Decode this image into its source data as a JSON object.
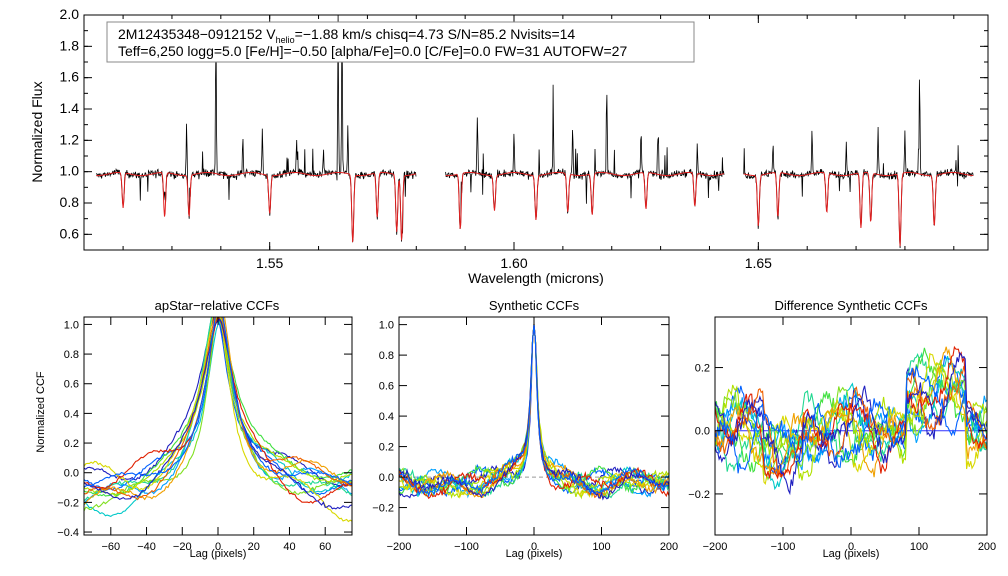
{
  "colors": {
    "observed": "#000000",
    "model": "#e02020",
    "ccf_palette": [
      "#2020c0",
      "#0060ff",
      "#00a0ff",
      "#00c8c8",
      "#20d890",
      "#40e040",
      "#80e020",
      "#b0e000",
      "#d8d800",
      "#f0a000",
      "#f06000",
      "#e02000"
    ],
    "zero_line_top": "#000000",
    "zero_line_diff": "#3030ff"
  },
  "chart_data": [
    {
      "type": "line",
      "id": "spectrum",
      "title": "",
      "xlabel": "Wavelength (microns)",
      "ylabel": "Normalized Flux",
      "xlim": [
        1.512,
        1.697
      ],
      "ylim": [
        0.5,
        2.0
      ],
      "x_ticks": [
        {
          "v": 1.55,
          "label": "1.55"
        },
        {
          "v": 1.6,
          "label": "1.60"
        },
        {
          "v": 1.65,
          "label": "1.65"
        }
      ],
      "y_ticks": [
        {
          "v": 0.6,
          "label": "0.6"
        },
        {
          "v": 0.8,
          "label": "0.8"
        },
        {
          "v": 1.0,
          "label": "1.0"
        },
        {
          "v": 1.2,
          "label": "1.2"
        },
        {
          "v": 1.4,
          "label": "1.4"
        },
        {
          "v": 1.6,
          "label": "1.6"
        },
        {
          "v": 1.8,
          "label": "1.8"
        },
        {
          "v": 2.0,
          "label": "2.0"
        }
      ],
      "chips": [
        [
          1.5145,
          1.58
        ],
        [
          1.586,
          1.643
        ],
        [
          1.647,
          1.694
        ]
      ],
      "emission_lines": [
        {
          "w": 1.5285,
          "h": 1.18
        },
        {
          "w": 1.533,
          "h": 1.35
        },
        {
          "w": 1.539,
          "h": 1.92
        },
        {
          "w": 1.5445,
          "h": 1.22
        },
        {
          "w": 1.5485,
          "h": 1.3
        },
        {
          "w": 1.5555,
          "h": 1.22
        },
        {
          "w": 1.561,
          "h": 1.15
        },
        {
          "w": 1.564,
          "h": 2.0
        },
        {
          "w": 1.5648,
          "h": 2.0
        },
        {
          "w": 1.566,
          "h": 1.3
        },
        {
          "w": 1.5925,
          "h": 1.38
        },
        {
          "w": 1.6,
          "h": 1.25
        },
        {
          "w": 1.608,
          "h": 1.55
        },
        {
          "w": 1.612,
          "h": 1.3
        },
        {
          "w": 1.619,
          "h": 1.5
        },
        {
          "w": 1.626,
          "h": 1.28
        },
        {
          "w": 1.6295,
          "h": 1.3
        },
        {
          "w": 1.6375,
          "h": 1.2
        },
        {
          "w": 1.661,
          "h": 1.27
        },
        {
          "w": 1.668,
          "h": 1.22
        },
        {
          "w": 1.6745,
          "h": 1.3
        },
        {
          "w": 1.68,
          "h": 1.28
        },
        {
          "w": 1.683,
          "h": 1.66
        },
        {
          "w": 1.653,
          "h": 1.18
        }
      ],
      "absorption_lines": [
        {
          "w": 1.52,
          "d": 0.76
        },
        {
          "w": 1.5285,
          "d": 0.7
        },
        {
          "w": 1.5335,
          "d": 0.72
        },
        {
          "w": 1.55,
          "d": 0.74
        },
        {
          "w": 1.567,
          "d": 0.55
        },
        {
          "w": 1.572,
          "d": 0.7
        },
        {
          "w": 1.576,
          "d": 0.62
        },
        {
          "w": 1.577,
          "d": 0.57
        },
        {
          "w": 1.589,
          "d": 0.63
        },
        {
          "w": 1.596,
          "d": 0.76
        },
        {
          "w": 1.6045,
          "d": 0.7
        },
        {
          "w": 1.611,
          "d": 0.74
        },
        {
          "w": 1.616,
          "d": 0.72
        },
        {
          "w": 1.627,
          "d": 0.75
        },
        {
          "w": 1.637,
          "d": 0.77
        },
        {
          "w": 1.65,
          "d": 0.66
        },
        {
          "w": 1.654,
          "d": 0.7
        },
        {
          "w": 1.664,
          "d": 0.73
        },
        {
          "w": 1.671,
          "d": 0.63
        },
        {
          "w": 1.673,
          "d": 0.67
        },
        {
          "w": 1.679,
          "d": 0.52
        },
        {
          "w": 1.686,
          "d": 0.66
        }
      ],
      "annotation": {
        "line1_prefix": "2M12435348−0912152  V",
        "line1_sub": "helio",
        "line1_suffix": "=−1.88 km/s  chisq=4.73  S/N=85.2  Nvisits=14",
        "line2": "Teff=6,250 logg=5.0 [Fe/H]=−0.50 [alpha/Fe]=0.0 [C/Fe]=0.0 FW=31 AUTOFW=27"
      }
    },
    {
      "type": "line",
      "id": "apstar_ccf",
      "title": "apStar−relative CCFs",
      "xlabel": "Lag (pixels)",
      "ylabel": "Normalized CCF",
      "xlim": [
        -75,
        75
      ],
      "ylim": [
        -0.42,
        1.05
      ],
      "x_ticks": [
        {
          "v": -60,
          "label": "−60"
        },
        {
          "v": -40,
          "label": "−40"
        },
        {
          "v": -20,
          "label": "−20"
        },
        {
          "v": 0,
          "label": "0"
        },
        {
          "v": 20,
          "label": "20"
        },
        {
          "v": 40,
          "label": "40"
        },
        {
          "v": 60,
          "label": "60"
        }
      ],
      "y_ticks": [
        {
          "v": -0.4,
          "label": "−0.4"
        },
        {
          "v": -0.2,
          "label": "−0.2"
        },
        {
          "v": 0.0,
          "label": "0.0"
        },
        {
          "v": 0.2,
          "label": "0.2"
        },
        {
          "v": 0.4,
          "label": "0.4"
        },
        {
          "v": 0.6,
          "label": "0.6"
        },
        {
          "v": 0.8,
          "label": "0.8"
        },
        {
          "v": 1.0,
          "label": "1.0"
        }
      ],
      "n_series": 14,
      "peak_lag": 0,
      "peak_value": 1.0,
      "wing_level": -0.1
    },
    {
      "type": "line",
      "id": "synthetic_ccf",
      "title": "Synthetic CCFs",
      "xlabel": "Lag (pixels)",
      "ylabel": "",
      "xlim": [
        -200,
        200
      ],
      "ylim": [
        -0.38,
        1.05
      ],
      "x_ticks": [
        {
          "v": -200,
          "label": "−200"
        },
        {
          "v": -100,
          "label": "−100"
        },
        {
          "v": 0,
          "label": "0"
        },
        {
          "v": 100,
          "label": "100"
        },
        {
          "v": 200,
          "label": "200"
        }
      ],
      "y_ticks": [
        {
          "v": -0.2,
          "label": "−0.2"
        },
        {
          "v": 0.0,
          "label": "0.0"
        },
        {
          "v": 0.2,
          "label": "0.2"
        },
        {
          "v": 0.4,
          "label": "0.4"
        },
        {
          "v": 0.6,
          "label": "0.6"
        },
        {
          "v": 0.8,
          "label": "0.8"
        },
        {
          "v": 1.0,
          "label": "1.0"
        }
      ],
      "n_series": 14,
      "peak_lag": 0,
      "peak_value": 1.0,
      "wing_level": 0.0
    },
    {
      "type": "line",
      "id": "difference_ccf",
      "title": "Difference Synthetic CCFs",
      "xlabel": "Lag (pixels)",
      "ylabel": "",
      "xlim": [
        -200,
        200
      ],
      "ylim": [
        -0.33,
        0.36
      ],
      "x_ticks": [
        {
          "v": -200,
          "label": "−200"
        },
        {
          "v": -100,
          "label": "−100"
        },
        {
          "v": 0,
          "label": "0"
        },
        {
          "v": 100,
          "label": "100"
        },
        {
          "v": 200,
          "label": "200"
        }
      ],
      "y_ticks": [
        {
          "v": -0.2,
          "label": "−0.2"
        },
        {
          "v": 0.0,
          "label": "0.0"
        },
        {
          "v": 0.2,
          "label": "0.2"
        }
      ],
      "n_series": 14
    }
  ]
}
